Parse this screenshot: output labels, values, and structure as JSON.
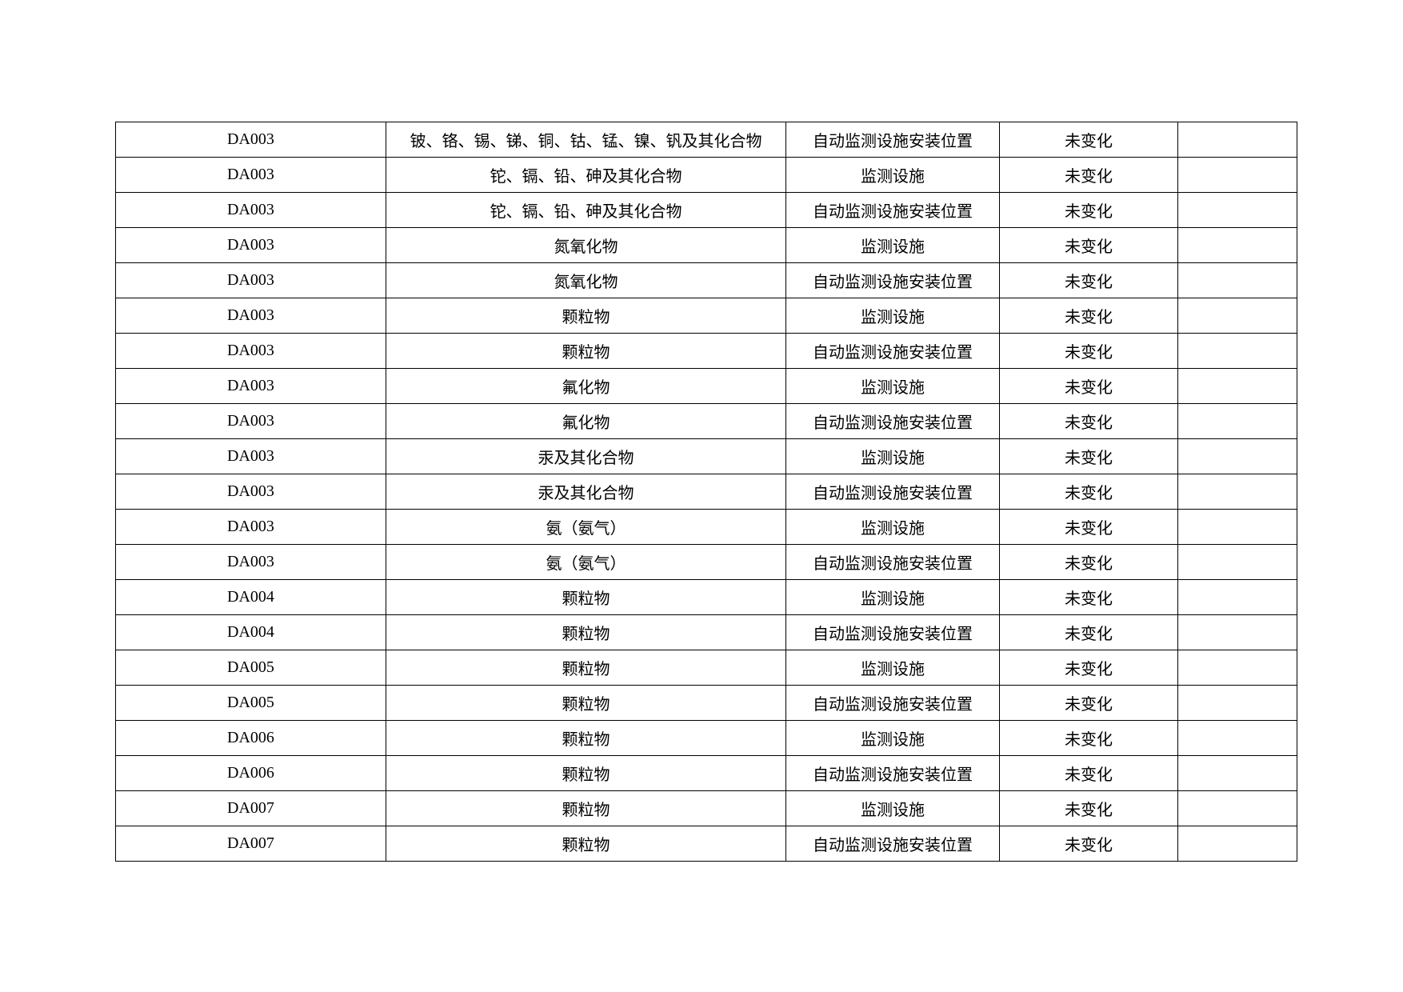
{
  "table": {
    "rows": [
      [
        "DA003",
        "铍、铬、锡、锑、铜、钴、锰、镍、钒及其化合物",
        "自动监测设施安装位置",
        "未变化",
        ""
      ],
      [
        "DA003",
        "铊、镉、铅、砷及其化合物",
        "监测设施",
        "未变化",
        ""
      ],
      [
        "DA003",
        "铊、镉、铅、砷及其化合物",
        "自动监测设施安装位置",
        "未变化",
        ""
      ],
      [
        "DA003",
        "氮氧化物",
        "监测设施",
        "未变化",
        ""
      ],
      [
        "DA003",
        "氮氧化物",
        "自动监测设施安装位置",
        "未变化",
        ""
      ],
      [
        "DA003",
        "颗粒物",
        "监测设施",
        "未变化",
        ""
      ],
      [
        "DA003",
        "颗粒物",
        "自动监测设施安装位置",
        "未变化",
        ""
      ],
      [
        "DA003",
        "氟化物",
        "监测设施",
        "未变化",
        ""
      ],
      [
        "DA003",
        "氟化物",
        "自动监测设施安装位置",
        "未变化",
        ""
      ],
      [
        "DA003",
        "汞及其化合物",
        "监测设施",
        "未变化",
        ""
      ],
      [
        "DA003",
        "汞及其化合物",
        "自动监测设施安装位置",
        "未变化",
        ""
      ],
      [
        "DA003",
        "氨（氨气）",
        "监测设施",
        "未变化",
        ""
      ],
      [
        "DA003",
        "氨（氨气）",
        "自动监测设施安装位置",
        "未变化",
        ""
      ],
      [
        "DA004",
        "颗粒物",
        "监测设施",
        "未变化",
        ""
      ],
      [
        "DA004",
        "颗粒物",
        "自动监测设施安装位置",
        "未变化",
        ""
      ],
      [
        "DA005",
        "颗粒物",
        "监测设施",
        "未变化",
        ""
      ],
      [
        "DA005",
        "颗粒物",
        "自动监测设施安装位置",
        "未变化",
        ""
      ],
      [
        "DA006",
        "颗粒物",
        "监测设施",
        "未变化",
        ""
      ],
      [
        "DA006",
        "颗粒物",
        "自动监测设施安装位置",
        "未变化",
        ""
      ],
      [
        "DA007",
        "颗粒物",
        "监测设施",
        "未变化",
        ""
      ],
      [
        "DA007",
        "颗粒物",
        "自动监测设施安装位置",
        "未变化",
        ""
      ]
    ]
  }
}
